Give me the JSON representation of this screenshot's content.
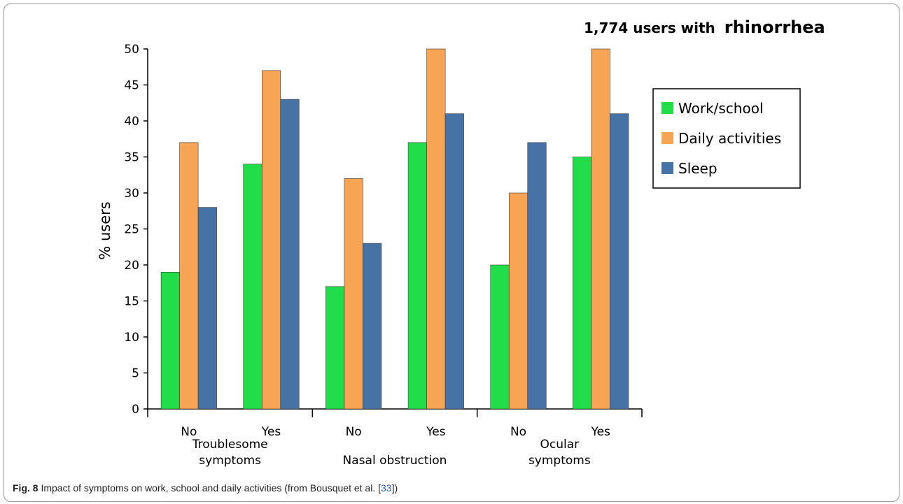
{
  "chart_data": {
    "type": "bar",
    "title_prefix": "1,774 users with",
    "title_emphasis": "rhinorrhea",
    "ylabel": "% users",
    "ylim": [
      0,
      50
    ],
    "yticks": [
      0,
      5,
      10,
      15,
      20,
      25,
      30,
      35,
      40,
      45,
      50
    ],
    "categories": [
      "No",
      "Yes",
      "No",
      "Yes",
      "No",
      "Yes"
    ],
    "groups": [
      {
        "label_lines": [
          "Troublesome",
          "symptoms"
        ],
        "categories": [
          0,
          1
        ]
      },
      {
        "label_lines": [
          "Nasal obstruction"
        ],
        "categories": [
          2,
          3
        ]
      },
      {
        "label_lines": [
          "Ocular",
          "symptoms"
        ],
        "categories": [
          4,
          5
        ]
      }
    ],
    "series": [
      {
        "name": "Work/school",
        "color": "#22dd4a",
        "values": [
          19,
          34,
          17,
          37,
          20,
          35
        ]
      },
      {
        "name": "Daily activities",
        "color": "#f8a455",
        "values": [
          37,
          47,
          32,
          50,
          30,
          50
        ]
      },
      {
        "name": "Sleep",
        "color": "#4672a6",
        "values": [
          28,
          43,
          23,
          41,
          37,
          41
        ]
      }
    ],
    "legend_position": "right",
    "grid": false
  },
  "caption": {
    "label": "Fig. 8",
    "text": "Impact of symptoms on work, school and daily activities (from Bousquet et al. [",
    "ref": "33",
    "suffix": "])"
  }
}
